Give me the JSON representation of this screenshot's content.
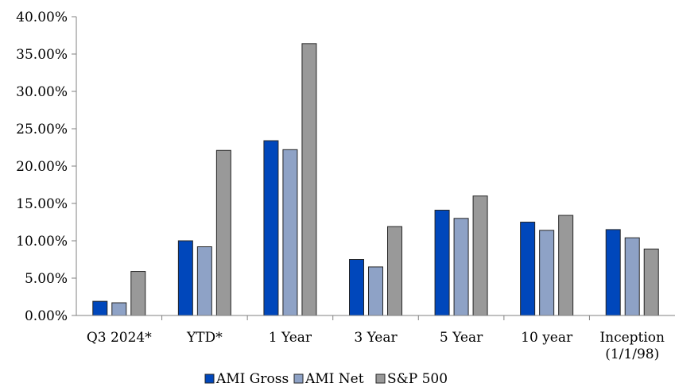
{
  "chart_data": {
    "type": "bar",
    "categories": [
      "Q3 2024*",
      "YTD*",
      "1 Year",
      "3 Year",
      "5 Year",
      "10 year",
      "Inception\n(1/1/98)"
    ],
    "series": [
      {
        "name": "AMI Gross",
        "color": "#0047bb",
        "values": [
          1.9,
          10.0,
          23.4,
          7.5,
          14.1,
          12.5,
          11.5
        ]
      },
      {
        "name": "AMI Net",
        "color": "#8ea2c6",
        "values": [
          1.7,
          9.2,
          22.2,
          6.5,
          13.0,
          11.4,
          10.4
        ]
      },
      {
        "name": "S&P 500",
        "color": "#999999",
        "values": [
          5.9,
          22.1,
          36.4,
          11.9,
          16.0,
          13.4,
          8.9
        ]
      }
    ],
    "y_ticks": [
      "0.00%",
      "5.00%",
      "10.00%",
      "15.00%",
      "20.00%",
      "25.00%",
      "30.00%",
      "35.00%",
      "40.00%"
    ],
    "ylim": [
      0,
      40
    ],
    "grid": false,
    "legend_position": "bottom"
  }
}
